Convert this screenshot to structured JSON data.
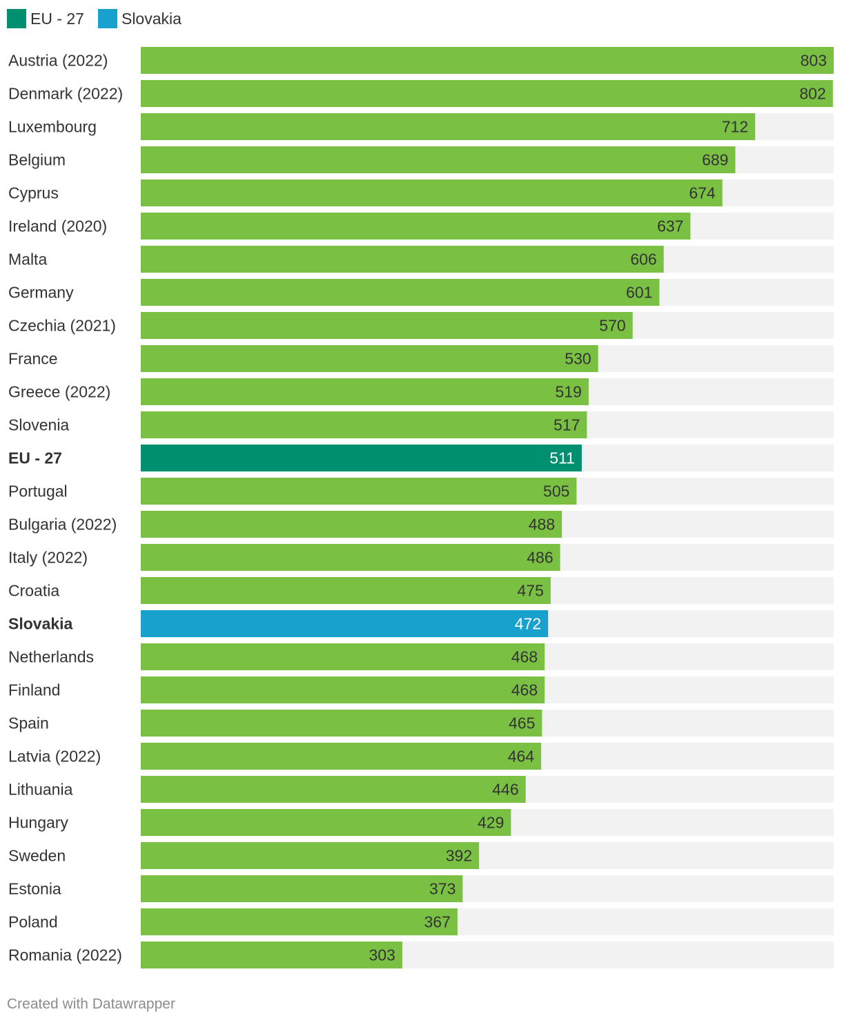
{
  "legend": [
    {
      "label": "EU - 27",
      "color": "#00906f"
    },
    {
      "label": "Slovakia",
      "color": "#18a1cd"
    }
  ],
  "colors": {
    "default_bar": "#7ac143",
    "track": "#f2f2f2",
    "label_dark": "#333333",
    "label_light": "#ffffff"
  },
  "chart_data": {
    "type": "bar",
    "orientation": "horizontal",
    "title": "",
    "xlabel": "",
    "ylabel": "",
    "xlim": [
      0,
      803
    ],
    "categories": [
      "Austria (2022)",
      "Denmark (2022)",
      "Luxembourg",
      "Belgium",
      "Cyprus",
      "Ireland (2020)",
      "Malta",
      "Germany",
      "Czechia (2021)",
      "France",
      "Greece (2022)",
      "Slovenia",
      "EU - 27",
      "Portugal",
      "Bulgaria (2022)",
      "Italy (2022)",
      "Croatia",
      "Slovakia",
      "Netherlands",
      "Finland",
      "Spain",
      "Latvia (2022)",
      "Lithuania",
      "Hungary",
      "Sweden",
      "Estonia",
      "Poland",
      "Romania (2022)"
    ],
    "values": [
      803,
      802,
      712,
      689,
      674,
      637,
      606,
      601,
      570,
      530,
      519,
      517,
      511,
      505,
      488,
      486,
      475,
      472,
      468,
      468,
      465,
      464,
      446,
      429,
      392,
      373,
      367,
      303
    ],
    "highlight": {
      "EU - 27": "#00906f",
      "Slovakia": "#18a1cd"
    }
  },
  "footer": "Created with Datawrapper"
}
